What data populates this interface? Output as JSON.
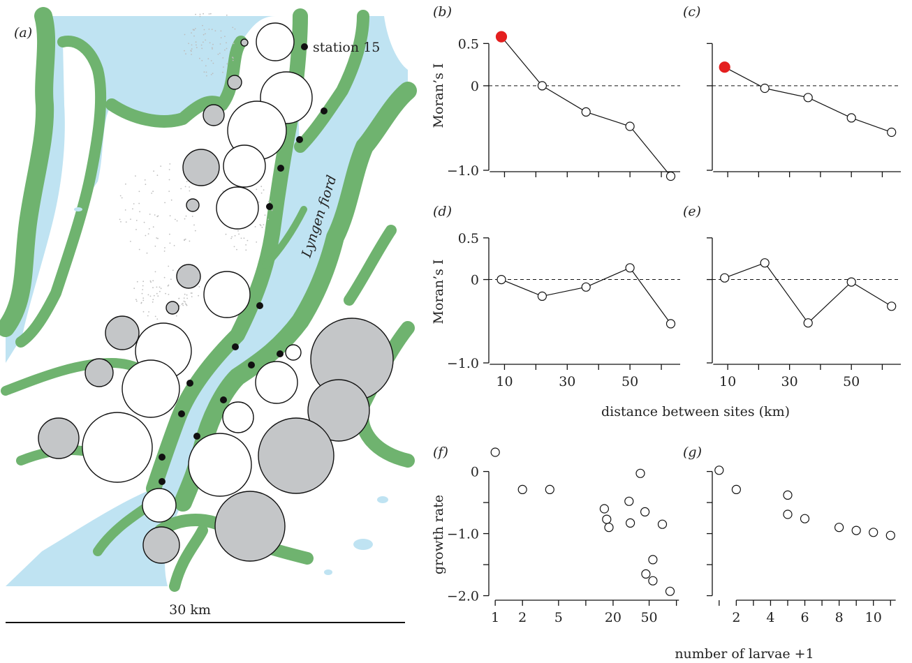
{
  "colors": {
    "water": "#bfe3f2",
    "land": "#ffffff",
    "vegetation": "#6fb36f",
    "circle_gray": "#c4c6c8",
    "circle_white": "#ffffff",
    "highlight": "#e41f1f",
    "station": "#111111"
  },
  "map": {
    "panel_label": "(a)",
    "station_label": "station 15",
    "fjord_label": "Lyngen fiord",
    "scale_label": "30 km"
  },
  "labels": {
    "morans_i": "Moran’s I",
    "distance": "distance between sites (km)",
    "growth_rate": "growth rate",
    "larvae": "number of larvae +1"
  },
  "chart_data": [
    {
      "id": "b",
      "type": "line",
      "panel_label": "(b)",
      "x": [
        9,
        22,
        36,
        50,
        63
      ],
      "y": [
        0.58,
        0.0,
        -0.31,
        -0.48,
        -1.07
      ],
      "xlim": [
        5,
        66
      ],
      "ylim": [
        -1.0,
        0.8
      ],
      "yticks": [
        0.5,
        0,
        -1.0
      ],
      "yticklabels": [
        "0.5",
        "0",
        "−1.0"
      ],
      "xticks": [
        10,
        30,
        50
      ],
      "xticklabels": [],
      "highlight": [
        0
      ],
      "reference_line": 0
    },
    {
      "id": "c",
      "type": "line",
      "panel_label": "(c)",
      "x": [
        9,
        22,
        36,
        50,
        63
      ],
      "y": [
        0.22,
        -0.03,
        -0.14,
        -0.38,
        -0.55
      ],
      "xlim": [
        5,
        66
      ],
      "ylim": [
        -1.0,
        0.8
      ],
      "yticks": [
        0.5,
        0,
        -1.0
      ],
      "yticklabels": [],
      "xticks": [
        10,
        30,
        50
      ],
      "xticklabels": [],
      "highlight": [
        0
      ],
      "reference_line": 0
    },
    {
      "id": "d",
      "type": "line",
      "panel_label": "(d)",
      "x": [
        9,
        22,
        36,
        50,
        63
      ],
      "y": [
        0.0,
        -0.2,
        -0.09,
        0.14,
        -0.53
      ],
      "xlim": [
        5,
        66
      ],
      "ylim": [
        -1.0,
        0.8
      ],
      "yticks": [
        0.5,
        0,
        -1.0
      ],
      "yticklabels": [
        "0.5",
        "0",
        "−1.0"
      ],
      "xticks": [
        10,
        30,
        50
      ],
      "xticklabels": [
        "10",
        "30",
        "50"
      ],
      "highlight": [],
      "reference_line": 0
    },
    {
      "id": "e",
      "type": "line",
      "panel_label": "(e)",
      "x": [
        9,
        22,
        36,
        50,
        63
      ],
      "y": [
        0.02,
        0.2,
        -0.52,
        -0.03,
        -0.32
      ],
      "xlim": [
        5,
        66
      ],
      "ylim": [
        -1.0,
        0.8
      ],
      "yticks": [
        0.5,
        0,
        -1.0
      ],
      "yticklabels": [],
      "xticks": [
        10,
        30,
        50
      ],
      "xticklabels": [
        "10",
        "30",
        "50"
      ],
      "highlight": [],
      "reference_line": 0
    },
    {
      "id": "f",
      "type": "scatter",
      "panel_label": "(f)",
      "xscale": "log",
      "x": [
        1,
        2,
        4,
        16,
        17,
        18,
        30,
        31,
        40,
        45,
        46,
        55,
        55,
        70,
        85
      ],
      "y": [
        0.31,
        -0.29,
        -0.29,
        -0.6,
        -0.77,
        -0.9,
        -0.48,
        -0.83,
        -0.03,
        -0.65,
        -1.65,
        -1.42,
        -1.76,
        -0.85,
        -1.93
      ],
      "xlim": [
        0.85,
        110
      ],
      "ylim": [
        -2.05,
        0.4
      ],
      "yticks": [
        0,
        -0.5,
        -1.0,
        -1.5,
        -2.0
      ],
      "yticklabels": [
        "0",
        "",
        "−1.0",
        "",
        "−2.0"
      ],
      "xticks": [
        1,
        2,
        5,
        20,
        50
      ],
      "xticklabels": [
        "1",
        "2",
        "5",
        "20",
        "50"
      ]
    },
    {
      "id": "g",
      "type": "scatter",
      "panel_label": "(g)",
      "x": [
        1,
        2,
        5,
        5,
        6,
        8,
        9,
        10,
        11
      ],
      "y": [
        0.02,
        -0.29,
        -0.38,
        -0.69,
        -0.76,
        -0.9,
        -0.95,
        -0.98,
        -1.03
      ],
      "xlim": [
        0.6,
        11.6
      ],
      "ylim": [
        -2.05,
        0.4
      ],
      "yticks": [
        0,
        -0.5,
        -1.0,
        -1.5,
        -2.0
      ],
      "yticklabels": [],
      "xticks": [
        2,
        4,
        6,
        8,
        10
      ],
      "xticklabels": [
        "2",
        "4",
        "6",
        "8",
        "10"
      ]
    }
  ]
}
